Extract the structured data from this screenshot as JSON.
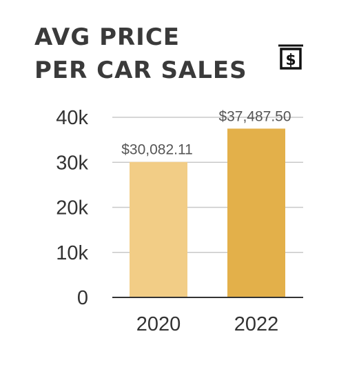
{
  "chart_data": {
    "type": "bar",
    "title_lines": [
      "AVG PRICE",
      "PER CAR SALES"
    ],
    "categories": [
      "2020",
      "2022"
    ],
    "values": [
      30082.11,
      37487.5
    ],
    "data_labels": [
      "$30,082.11",
      "$37,487.50"
    ],
    "colors": [
      "#f2cd86",
      "#e3b04a"
    ],
    "ylim": [
      0,
      40000
    ],
    "yticks": [
      0,
      10000,
      20000,
      30000,
      40000
    ],
    "ytick_labels": [
      "0",
      "10k",
      "20k",
      "30k",
      "40k"
    ],
    "grid": true,
    "xlabel": "",
    "ylabel": ""
  },
  "icon": "dollar-receipt-icon"
}
